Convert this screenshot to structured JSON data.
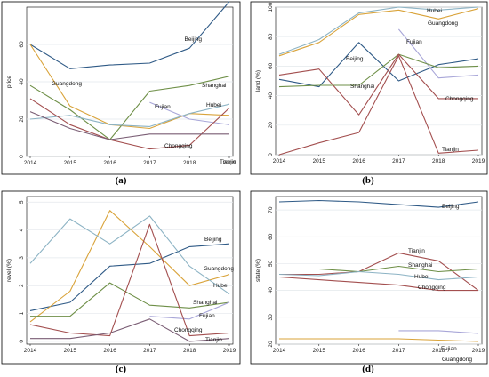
{
  "chart_data": [
    {
      "type": "line",
      "caption": "(a)",
      "ylabel": "price",
      "x": [
        2014,
        2015,
        2016,
        2017,
        2018,
        2019
      ],
      "ylim": [
        0,
        80
      ],
      "yticks": [
        0,
        20,
        40,
        60
      ],
      "grid": true,
      "series": [
        {
          "name": "Beijing",
          "color": "#2f5a86",
          "values": [
            60,
            47,
            49,
            50,
            58,
            83
          ]
        },
        {
          "name": "Guangdong",
          "color": "#d9a33a",
          "values": [
            60,
            27,
            17,
            15,
            23,
            22
          ]
        },
        {
          "name": "Shanghai",
          "color": "#6e8f47",
          "values": [
            38,
            25,
            9,
            35,
            38,
            43
          ]
        },
        {
          "name": "Fujian",
          "color": "#a8a6d8",
          "values": [
            null,
            null,
            null,
            29,
            20,
            17
          ]
        },
        {
          "name": "Hubei",
          "color": "#8cb3c4",
          "values": [
            20,
            22,
            17,
            16,
            23,
            28
          ]
        },
        {
          "name": "Chongqing",
          "color": "#a34f4f",
          "values": [
            31,
            17,
            9,
            4,
            6,
            26
          ]
        },
        {
          "name": "Tianjin",
          "color": "#7a5d74",
          "values": [
            24,
            15,
            9,
            12,
            12,
            12
          ]
        }
      ]
    },
    {
      "type": "line",
      "caption": "(b)",
      "ylabel": "land (%)",
      "x": [
        2014,
        2015,
        2016,
        2017,
        2018,
        2019
      ],
      "ylim": [
        0,
        100
      ],
      "yticks": [
        0,
        20,
        40,
        60,
        80,
        100
      ],
      "grid": true,
      "series": [
        {
          "name": "Hubei",
          "color": "#8cb3c4",
          "values": [
            68,
            78,
            96,
            100,
            98,
            100
          ]
        },
        {
          "name": "Guangdong",
          "color": "#d9a33a",
          "values": [
            67,
            76,
            95,
            98,
            92,
            99
          ]
        },
        {
          "name": "Fujian",
          "color": "#a8a6d8",
          "values": [
            null,
            null,
            null,
            85,
            52,
            54
          ]
        },
        {
          "name": "Beijing",
          "color": "#2f5a86",
          "values": [
            51,
            46,
            76,
            50,
            61,
            65
          ]
        },
        {
          "name": "Shanghai",
          "color": "#6e8f47",
          "values": [
            46,
            47,
            47,
            68,
            59,
            60
          ]
        },
        {
          "name": "Chongqing",
          "color": "#a34f4f",
          "values": [
            54,
            58,
            27,
            68,
            38,
            38
          ]
        },
        {
          "name": "Tianjin",
          "color": "#a34f4f",
          "values": [
            0,
            8,
            15,
            67,
            1,
            3
          ]
        }
      ]
    },
    {
      "type": "line",
      "caption": "(c)",
      "ylabel": "revel (%)",
      "x": [
        2014,
        2015,
        2016,
        2017,
        2018,
        2019
      ],
      "ylim": [
        -0.1,
        5.2
      ],
      "yticks": [
        0,
        1,
        2,
        3,
        4,
        5
      ],
      "grid": true,
      "series": [
        {
          "name": "Beijing",
          "color": "#2f5a86",
          "values": [
            1.1,
            1.4,
            2.7,
            2.8,
            3.4,
            3.5
          ]
        },
        {
          "name": "Guangdong",
          "color": "#d9a33a",
          "values": [
            0.7,
            1.8,
            4.7,
            3.4,
            2.0,
            2.4
          ]
        },
        {
          "name": "Hubei",
          "color": "#8cb3c4",
          "values": [
            2.8,
            4.4,
            3.5,
            4.5,
            2.7,
            1.7
          ]
        },
        {
          "name": "Shanghai",
          "color": "#6e8f47",
          "values": [
            0.9,
            0.9,
            2.1,
            1.3,
            1.2,
            1.4
          ]
        },
        {
          "name": "Fujian",
          "color": "#a8a6d8",
          "values": [
            null,
            null,
            null,
            0.9,
            0.8,
            1.4
          ]
        },
        {
          "name": "Chongqing",
          "color": "#a34f4f",
          "values": [
            0.6,
            0.3,
            0.2,
            4.2,
            0.2,
            0.3
          ]
        },
        {
          "name": "Tianjin",
          "color": "#7a5d74",
          "values": [
            0.1,
            0.1,
            0.3,
            0.8,
            0.0,
            0.1
          ]
        }
      ]
    },
    {
      "type": "line",
      "caption": "(d)",
      "ylabel": "state (%)",
      "x": [
        2014,
        2015,
        2016,
        2017,
        2018,
        2019
      ],
      "ylim": [
        20,
        75
      ],
      "yticks": [
        20,
        30,
        40,
        50,
        60,
        70
      ],
      "grid": true,
      "series": [
        {
          "name": "Beijing",
          "color": "#2f5a86",
          "values": [
            73,
            73.5,
            73,
            72,
            71,
            73
          ]
        },
        {
          "name": "Tianjin",
          "color": "#a34f4f",
          "values": [
            46,
            46,
            47,
            54,
            51,
            40
          ]
        },
        {
          "name": "Shanghai",
          "color": "#6e8f47",
          "values": [
            48,
            48,
            47,
            49,
            47,
            48
          ]
        },
        {
          "name": "Hubei",
          "color": "#8cb3c4",
          "values": [
            46,
            45.5,
            47,
            46,
            44,
            45
          ]
        },
        {
          "name": "Chongqing",
          "color": "#a34f4f",
          "values": [
            45,
            44,
            43,
            42,
            40,
            40
          ]
        },
        {
          "name": "Fujian",
          "color": "#a8a6d8",
          "values": [
            null,
            null,
            null,
            25,
            25,
            24
          ]
        },
        {
          "name": "Guangdong",
          "color": "#d9a33a",
          "values": [
            22,
            22,
            22,
            22,
            21.5,
            21
          ]
        }
      ]
    }
  ]
}
